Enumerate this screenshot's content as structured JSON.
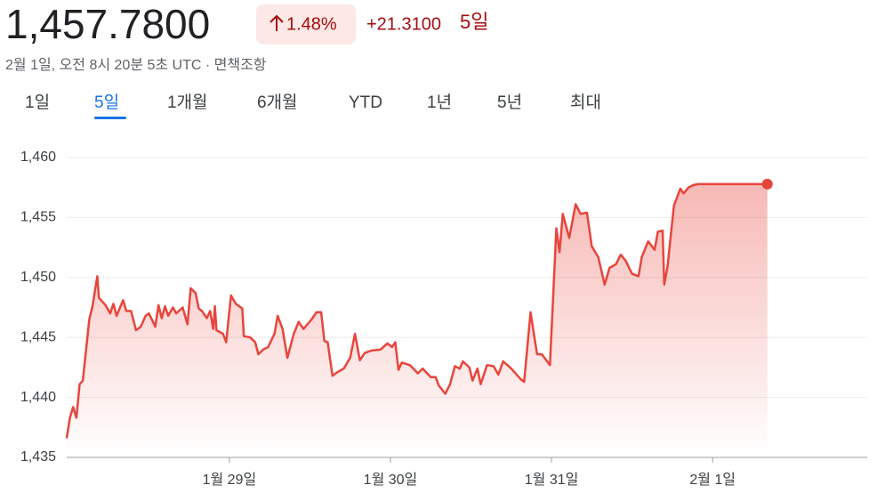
{
  "header": {
    "price": "1,457.7800",
    "percent": "1.48%",
    "change": "+21.3100",
    "period": "5일",
    "timestamp": "2월 1일, 오전 8시 20분 5초 UTC · 면책조항"
  },
  "tabs": [
    "1일",
    "5일",
    "1개월",
    "6개월",
    "YTD",
    "1년",
    "5년",
    "최대"
  ],
  "selected_tab": 1,
  "chart_data": {
    "type": "line",
    "x": [
      -1.01,
      -0.99,
      -0.97,
      -0.95,
      -0.93,
      -0.91,
      -0.87,
      -0.85,
      -0.82,
      -0.81,
      -0.77,
      -0.74,
      -0.72,
      -0.7,
      -0.66,
      -0.64,
      -0.61,
      -0.58,
      -0.55,
      -0.52,
      -0.5,
      -0.46,
      -0.44,
      -0.42,
      -0.4,
      -0.38,
      -0.35,
      -0.33,
      -0.29,
      -0.26,
      -0.24,
      -0.21,
      -0.19,
      -0.17,
      -0.14,
      -0.12,
      -0.1,
      -0.09,
      -0.08,
      -0.04,
      -0.02,
      0.01,
      0.04,
      0.08,
      0.09,
      0.13,
      0.16,
      0.18,
      0.21,
      0.24,
      0.28,
      0.3,
      0.33,
      0.36,
      0.4,
      0.43,
      0.46,
      0.51,
      0.54,
      0.57,
      0.59,
      0.61,
      0.64,
      0.67,
      0.71,
      0.75,
      0.78,
      0.81,
      0.84,
      0.88,
      0.94,
      0.98,
      1.01,
      1.03,
      1.05,
      1.07,
      1.12,
      1.15,
      1.17,
      1.2,
      1.25,
      1.28,
      1.3,
      1.34,
      1.37,
      1.4,
      1.43,
      1.45,
      1.49,
      1.51,
      1.54,
      1.56,
      1.6,
      1.64,
      1.67,
      1.7,
      1.75,
      1.81,
      1.83,
      1.87,
      1.91,
      1.94,
      1.99,
      2.03,
      2.05,
      2.07,
      2.11,
      2.15,
      2.18,
      2.22,
      2.25,
      2.29,
      2.33,
      2.36,
      2.4,
      2.43,
      2.46,
      2.5,
      2.54,
      2.56,
      2.6,
      2.64,
      2.66,
      2.69,
      2.7,
      2.72,
      2.76,
      2.8,
      2.82,
      2.85,
      2.88,
      2.91,
      3.34
    ],
    "series": [
      {
        "color": "#e8453c",
        "values": [
          1436.6,
          1438.3,
          1439.2,
          1438.3,
          1441.1,
          1441.4,
          1446.5,
          1447.6,
          1450.1,
          1448.3,
          1447.7,
          1447.0,
          1447.8,
          1446.8,
          1448.1,
          1447.2,
          1447.2,
          1445.6,
          1445.9,
          1446.8,
          1447.0,
          1445.9,
          1447.7,
          1446.6,
          1447.6,
          1446.8,
          1447.5,
          1447.0,
          1447.5,
          1446.1,
          1449.1,
          1448.7,
          1447.4,
          1447.2,
          1446.6,
          1447.2,
          1445.7,
          1447.6,
          1445.6,
          1445.3,
          1444.6,
          1448.5,
          1447.8,
          1447.4,
          1445.1,
          1445.0,
          1444.6,
          1443.6,
          1444.0,
          1444.2,
          1445.3,
          1446.8,
          1445.7,
          1443.3,
          1445.3,
          1446.3,
          1445.7,
          1446.5,
          1447.1,
          1447.1,
          1444.7,
          1444.6,
          1441.8,
          1442.1,
          1442.4,
          1443.3,
          1445.3,
          1443.1,
          1443.7,
          1443.9,
          1444.0,
          1444.5,
          1444.2,
          1444.6,
          1442.3,
          1442.9,
          1442.7,
          1442.3,
          1442.0,
          1442.4,
          1441.7,
          1441.7,
          1441.0,
          1440.3,
          1441.1,
          1442.6,
          1442.4,
          1443.0,
          1442.5,
          1441.4,
          1442.4,
          1441.1,
          1442.7,
          1442.6,
          1441.9,
          1443.0,
          1442.4,
          1441.5,
          1441.3,
          1447.1,
          1443.6,
          1443.6,
          1442.7,
          1454.1,
          1452.1,
          1455.3,
          1453.3,
          1456.1,
          1455.3,
          1455.4,
          1452.6,
          1451.7,
          1449.4,
          1450.8,
          1451.1,
          1451.9,
          1451.4,
          1450.3,
          1450.1,
          1451.7,
          1453.0,
          1452.3,
          1453.8,
          1453.9,
          1449.4,
          1450.9,
          1456.0,
          1457.4,
          1457.0,
          1457.5,
          1457.7,
          1457.78,
          1457.78
        ]
      }
    ],
    "xlim": [
      -1.01,
      3.96
    ],
    "xticks": [
      {
        "value": 0,
        "label": "1월 29일"
      },
      {
        "value": 1,
        "label": "1월 30일"
      },
      {
        "value": 2,
        "label": "1월 31일"
      },
      {
        "value": 3,
        "label": "2월 1일"
      }
    ],
    "ylim": [
      1435,
      1462
    ],
    "yticks": [
      {
        "value": 1435,
        "label": "1,435"
      },
      {
        "value": 1440,
        "label": "1,440"
      },
      {
        "value": 1445,
        "label": "1,445"
      },
      {
        "value": 1450,
        "label": "1,450"
      },
      {
        "value": 1455,
        "label": "1,455"
      },
      {
        "value": 1460,
        "label": "1,460"
      }
    ],
    "grid": true
  }
}
